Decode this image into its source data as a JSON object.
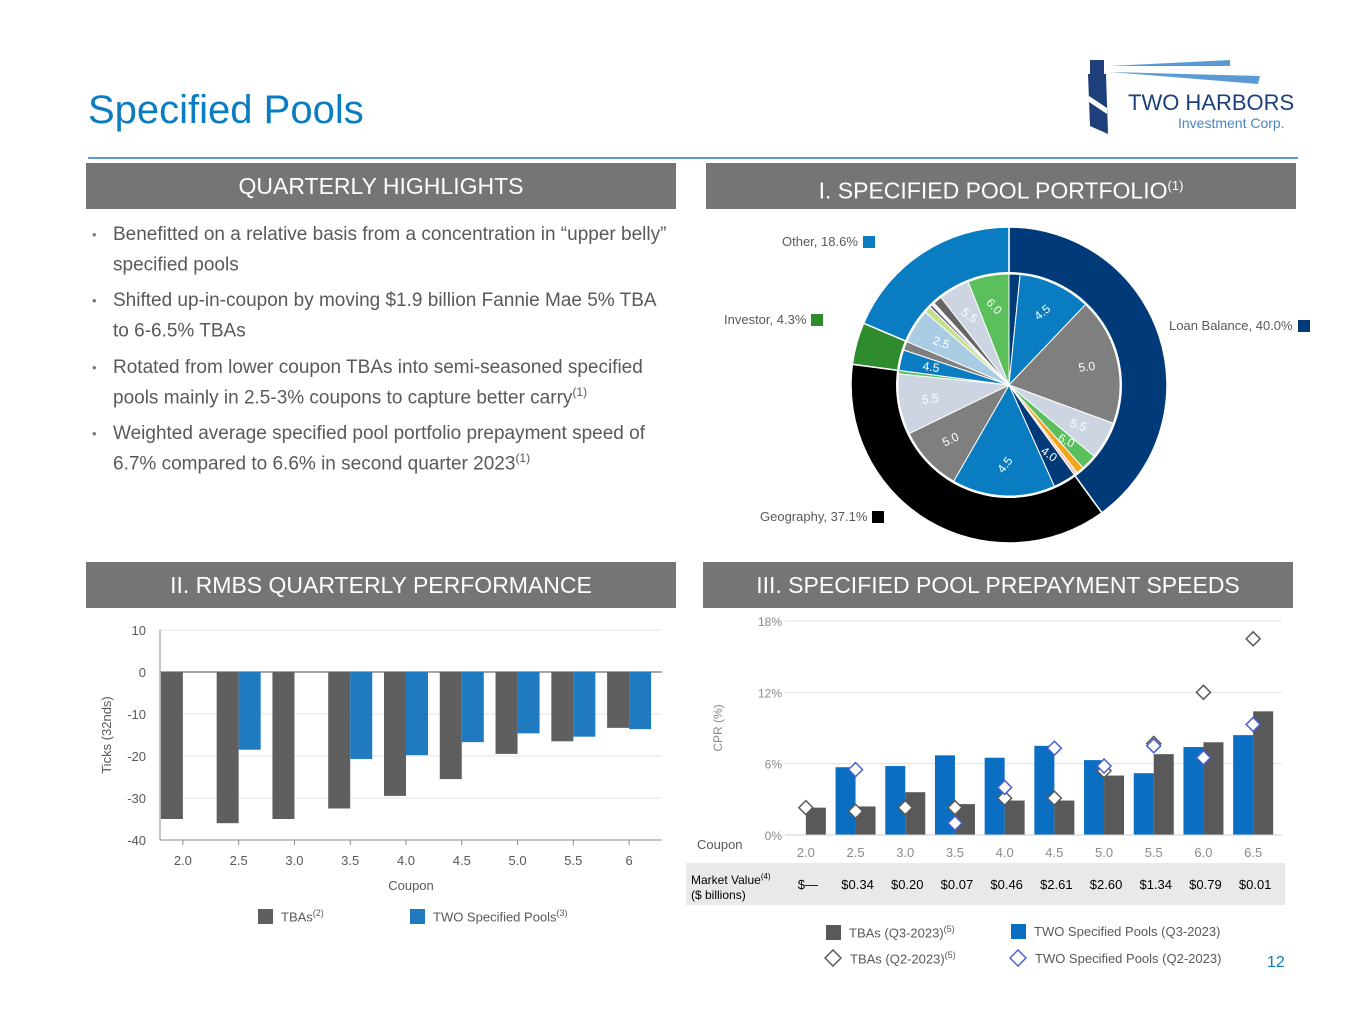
{
  "title": "Specified Pools",
  "logo": {
    "name": "TWO HARBORS",
    "sub": "Investment Corp."
  },
  "page_number": "12",
  "highlights": {
    "header": "QUARTERLY HIGHLIGHTS",
    "bullets": [
      {
        "text": "Benefitted on a relative basis from a concentration in “upper belly” specified pools",
        "sup": ""
      },
      {
        "text": "Shifted up-in-coupon by moving $1.9 billion Fannie Mae 5% TBA to 6-6.5% TBAs",
        "sup": ""
      },
      {
        "text": "Rotated from lower coupon TBAs into semi-seasoned specified pools mainly in 2.5-3% coupons to capture better carry",
        "sup": "(1)"
      },
      {
        "text": "Weighted average specified pool portfolio prepayment speed of 6.7% compared to 6.6% in second quarter 2023",
        "sup": "(1)"
      }
    ]
  },
  "section1": {
    "header": "I. SPECIFIED POOL PORTFOLIO",
    "sup": "(1)"
  },
  "section2": {
    "header": "II. RMBS QUARTERLY PERFORMANCE"
  },
  "section3": {
    "header": "III. SPECIFIED POOL PREPAYMENT SPEEDS"
  },
  "colors": {
    "navy": "#003a78",
    "blue": "#0a7dc2",
    "gray": "#7f7f7f",
    "dark_gray": "#595959",
    "black": "#000000",
    "green": "#2e8b2e",
    "light": "#cdd5e3",
    "lgreen": "#5bbf5b"
  },
  "chart_data": [
    {
      "type": "pie",
      "title": "Specified Pool Portfolio",
      "outer": [
        {
          "label": "Loan Balance, 40.0%",
          "value": 40.0,
          "color": "#003a78"
        },
        {
          "label": "Geography, 37.1%",
          "value": 37.1,
          "color": "#000000"
        },
        {
          "label": "Investor, 4.3%",
          "value": 4.3,
          "color": "#2e8b2e"
        },
        {
          "label": "Other, 18.6%",
          "value": 18.6,
          "color": "#0a7dc2"
        }
      ],
      "inner": [
        {
          "label": "",
          "value": 1.6,
          "color": "#003a78"
        },
        {
          "label": "4.5",
          "value": 10.5,
          "color": "#0a7dc2"
        },
        {
          "label": "5.0",
          "value": 18.5,
          "color": "#7f7f7f"
        },
        {
          "label": "5.5",
          "value": 5.5,
          "color": "#cdd5e3"
        },
        {
          "label": "6.0",
          "value": 2.3,
          "color": "#5bbf5b"
        },
        {
          "label": "",
          "value": 1.1,
          "color": "#f5a31a"
        },
        {
          "label": "",
          "value": 0.5,
          "color": "#f2c9b8"
        },
        {
          "label": "4.0",
          "value": 3.3,
          "color": "#003a78"
        },
        {
          "label": "4.5",
          "value": 15.0,
          "color": "#0a7dc2"
        },
        {
          "label": "5.0",
          "value": 9.5,
          "color": "#7f7f7f"
        },
        {
          "label": "5.5",
          "value": 8.8,
          "color": "#cdd5e3"
        },
        {
          "label": "",
          "value": 0.5,
          "color": "#5bbf5b"
        },
        {
          "label": "4.5",
          "value": 3.0,
          "color": "#0a7dc2"
        },
        {
          "label": "",
          "value": 1.3,
          "color": "#7f7f7f"
        },
        {
          "label": "2.5",
          "value": 5.0,
          "color": "#a9cce3"
        },
        {
          "label": "",
          "value": 1.0,
          "color": "#c5e08a"
        },
        {
          "label": "",
          "value": 0.4,
          "color": "#5a4a8a"
        },
        {
          "label": "",
          "value": 0.4,
          "color": "#f2f2f2"
        },
        {
          "label": "",
          "value": 1.3,
          "color": "#666666"
        },
        {
          "label": "5.5",
          "value": 4.5,
          "color": "#cdd5e3"
        },
        {
          "label": "6.0",
          "value": 6.0,
          "color": "#5bbf5b"
        }
      ]
    },
    {
      "type": "bar",
      "title": "RMBS Quarterly Performance",
      "xlabel": "Coupon",
      "ylabel": "Ticks (32nds)",
      "ylim": [
        -40,
        10
      ],
      "yticks": [
        "10",
        "0",
        "-10",
        "-20",
        "-30",
        "-40"
      ],
      "categories": [
        "2.0",
        "2.5",
        "3.0",
        "3.5",
        "4.0",
        "4.5",
        "5.0",
        "5.5",
        "6"
      ],
      "series": [
        {
          "name": "TBAs",
          "sup": "(2)",
          "color": "#5f5f5f",
          "values": [
            -35,
            -36,
            -35,
            -32.5,
            -29.5,
            -25.5,
            -19.5,
            -16.5,
            -13.3
          ]
        },
        {
          "name": "TWO Specified Pools",
          "sup": "(3)",
          "color": "#1f7ac0",
          "values": [
            null,
            -18.5,
            null,
            -20.7,
            -19.8,
            -16.7,
            -14.6,
            -15.4,
            -13.6
          ]
        }
      ]
    },
    {
      "type": "bar",
      "title": "Specified Pool Prepayment Speeds",
      "xlabel": "Coupon",
      "ylabel": "CPR (%)",
      "ylim": [
        0,
        18
      ],
      "yticks": [
        "18%",
        "12%",
        "6%",
        "0%"
      ],
      "categories": [
        "2.0",
        "2.5",
        "3.0",
        "3.5",
        "4.0",
        "4.5",
        "5.0",
        "5.5",
        "6.0",
        "6.5"
      ],
      "series": [
        {
          "name": "TWO Specified Pools (Q3-2023)",
          "sup": "",
          "color": "#0a6fc2",
          "values": [
            null,
            5.7,
            5.8,
            6.7,
            6.5,
            7.5,
            6.3,
            5.2,
            7.4,
            8.4
          ]
        },
        {
          "name": "TBAs (Q3-2023)",
          "sup": "(5)",
          "color": "#595959",
          "values": [
            2.3,
            2.4,
            3.6,
            2.6,
            2.9,
            2.9,
            5.0,
            6.8,
            7.8,
            10.4
          ]
        },
        {
          "name": "TBAs (Q2-2023)",
          "sup": "(5)",
          "color": "#595959",
          "marker": "diamond",
          "values": [
            2.3,
            2.0,
            2.3,
            2.3,
            3.1,
            3.1,
            5.4,
            7.7,
            12.0,
            16.5
          ]
        },
        {
          "name": "TWO Specified Pools (Q2-2023)",
          "sup": "",
          "color": "#4a5fd6",
          "marker": "diamond",
          "values": [
            null,
            5.5,
            null,
            1.0,
            4.0,
            7.3,
            5.8,
            7.5,
            6.5,
            9.3
          ]
        }
      ],
      "market_value": {
        "label": "Market Value",
        "sup": "(4)",
        "label2": "($ billions)",
        "values": [
          "$—",
          "$0.34",
          "$0.20",
          "$0.07",
          "$0.46",
          "$2.61",
          "$2.60",
          "$1.34",
          "$0.79",
          "$0.01"
        ]
      }
    }
  ]
}
